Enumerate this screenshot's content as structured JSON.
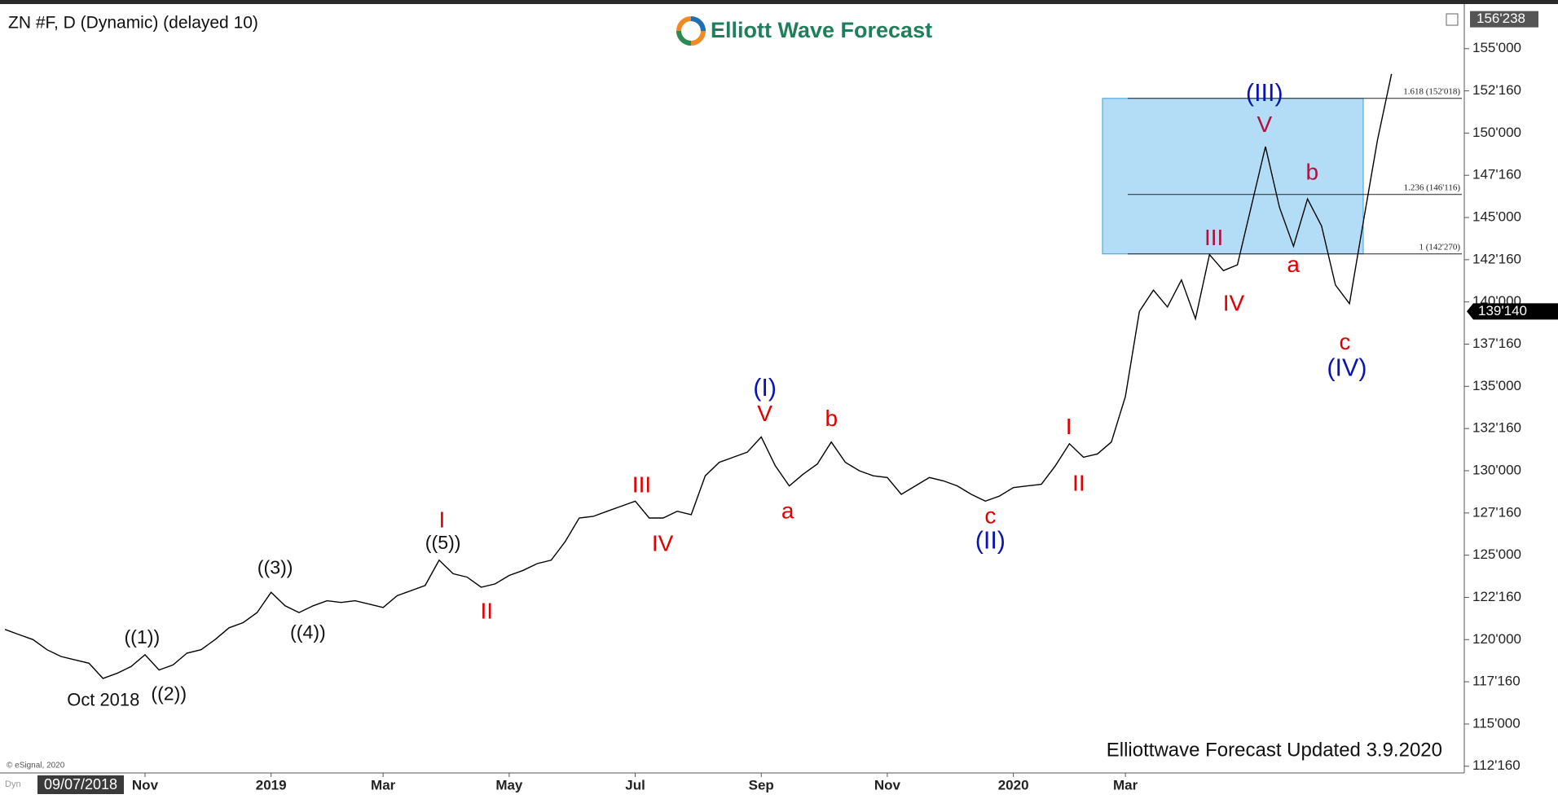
{
  "chart_data": {
    "type": "line",
    "title": "ZN #F, D (Dynamic) (delayed 10)",
    "categories": [
      null,
      null,
      null,
      null,
      null,
      null,
      null,
      null,
      null,
      null,
      "Nov",
      null,
      null,
      null,
      null,
      null,
      null,
      null,
      null,
      "2019",
      null,
      null,
      null,
      null,
      null,
      null,
      null,
      "Mar",
      null,
      null,
      null,
      null,
      null,
      null,
      null,
      null,
      "May",
      null,
      null,
      null,
      null,
      null,
      null,
      null,
      null,
      "Jul",
      null,
      null,
      null,
      null,
      null,
      null,
      null,
      null,
      "Sep",
      null,
      null,
      null,
      null,
      null,
      null,
      null,
      null,
      "Nov",
      null,
      null,
      null,
      null,
      null,
      null,
      null,
      null,
      "2020",
      null,
      null,
      null,
      null,
      null,
      null,
      null,
      "Mar",
      null,
      null,
      null,
      null,
      null,
      null,
      null,
      null,
      null,
      null,
      null,
      null,
      null,
      null,
      null,
      null,
      null,
      null,
      null
    ],
    "series": [
      {
        "color": "#000000",
        "values": [
          120.6,
          120.3,
          120.0,
          119.4,
          119.0,
          118.8,
          118.6,
          117.7,
          118.0,
          118.4,
          119.1,
          118.2,
          118.5,
          119.2,
          119.4,
          120.0,
          120.7,
          121.0,
          121.6,
          122.8,
          122.0,
          121.6,
          122.0,
          122.3,
          122.2,
          122.3,
          122.1,
          121.9,
          122.6,
          122.9,
          123.2,
          124.7,
          123.9,
          123.7,
          123.1,
          123.3,
          123.8,
          124.1,
          124.5,
          124.7,
          125.8,
          127.2,
          127.3,
          127.6,
          127.9,
          128.2,
          127.2,
          127.2,
          127.6,
          127.4,
          129.7,
          130.5,
          130.8,
          131.1,
          132.0,
          130.3,
          129.1,
          129.8,
          130.4,
          131.7,
          130.5,
          130.0,
          129.7,
          129.6,
          128.6,
          129.1,
          129.6,
          129.4,
          129.1,
          128.6,
          128.2,
          128.5,
          129.0,
          129.1,
          129.2,
          130.3,
          131.6,
          130.8,
          131.0,
          131.7,
          134.4,
          139.4375,
          null,
          null,
          null,
          null,
          null,
          null,
          null,
          null,
          null,
          null,
          null,
          null,
          null,
          null,
          null,
          null,
          null,
          null
        ]
      },
      {
        "color": "#000000",
        "values": [
          null,
          null,
          null,
          null,
          null,
          null,
          null,
          null,
          null,
          null,
          null,
          null,
          null,
          null,
          null,
          null,
          null,
          null,
          null,
          null,
          null,
          null,
          null,
          null,
          null,
          null,
          null,
          null,
          null,
          null,
          null,
          null,
          null,
          null,
          null,
          null,
          null,
          null,
          null,
          null,
          null,
          null,
          null,
          null,
          null,
          null,
          null,
          null,
          null,
          null,
          null,
          null,
          null,
          null,
          null,
          null,
          null,
          null,
          null,
          null,
          null,
          null,
          null,
          null,
          null,
          null,
          null,
          null,
          null,
          null,
          null,
          null,
          null,
          null,
          null,
          null,
          null,
          null,
          null,
          null,
          null,
          139.4375,
          140.7,
          139.7,
          141.3,
          139.0,
          142.8,
          141.85,
          142.2,
          145.7,
          149.2,
          145.6,
          143.3,
          146.1,
          144.5,
          141.0,
          139.9,
          144.8,
          149.6,
          153.5
        ]
      }
    ],
    "ylim": [
      112.15,
      157.4
    ],
    "yticks": [
      {
        "value": 112.5,
        "label": "112'160"
      },
      {
        "value": 115,
        "label": "115'000"
      },
      {
        "value": 117.5,
        "label": "117'160"
      },
      {
        "value": 120,
        "label": "120'000"
      },
      {
        "value": 122.5,
        "label": "122'160"
      },
      {
        "value": 125,
        "label": "125'000"
      },
      {
        "value": 127.5,
        "label": "127'160"
      },
      {
        "value": 130,
        "label": "130'000"
      },
      {
        "value": 132.5,
        "label": "132'160"
      },
      {
        "value": 135,
        "label": "135'000"
      },
      {
        "value": 137.5,
        "label": "137'160"
      },
      {
        "value": 140,
        "label": "140'000"
      },
      {
        "value": 142.5,
        "label": "142'160"
      },
      {
        "value": 145,
        "label": "145'000"
      },
      {
        "value": 147.5,
        "label": "147'160"
      },
      {
        "value": 150,
        "label": "150'000"
      },
      {
        "value": 152.5,
        "label": "152'160"
      },
      {
        "value": 155,
        "label": "155'000"
      }
    ],
    "top_label": {
      "value": 156.74375,
      "label": "156'238"
    },
    "last_price": {
      "value": 139.4375,
      "label": "139'140"
    },
    "fib_levels": [
      {
        "value": 152.05625,
        "label": "1.618 (152'018)"
      },
      {
        "value": 146.3625,
        "label": "1.236 (146'116)"
      },
      {
        "value": 142.84375,
        "label": "1 (142'270)"
      }
    ],
    "zone_color": "#b3ddf7",
    "annotations": [
      {
        "text": "((1))",
        "color": "#111111"
      },
      {
        "text": "((2))",
        "color": "#111111"
      },
      {
        "text": "((3))",
        "color": "#111111"
      },
      {
        "text": "((4))",
        "color": "#111111"
      },
      {
        "text": "((5))",
        "color": "#111111"
      },
      {
        "text": "I",
        "color": "#e00000"
      },
      {
        "text": "II",
        "color": "#e00000"
      },
      {
        "text": "III",
        "color": "#e00000"
      },
      {
        "text": "IV",
        "color": "#e00000"
      },
      {
        "text": "(I)",
        "color": "#0a14b4"
      },
      {
        "text": "V",
        "color": "#e00000"
      },
      {
        "text": "a",
        "color": "#e00000"
      },
      {
        "text": "b",
        "color": "#e00000"
      },
      {
        "text": "c",
        "color": "#e00000"
      },
      {
        "text": "(II)",
        "color": "#0a14b4"
      },
      {
        "text": "I",
        "color": "#e00000"
      },
      {
        "text": "II",
        "color": "#e00000"
      },
      {
        "text": "III",
        "color": "#b0103c"
      },
      {
        "text": "IV",
        "color": "#e00000"
      },
      {
        "text": "(III)",
        "color": "#0a14b4"
      },
      {
        "text": "V",
        "color": "#b0103c"
      },
      {
        "text": "a",
        "color": "#e00000"
      },
      {
        "text": "b",
        "color": "#b0103c"
      },
      {
        "text": "c",
        "color": "#e00000"
      },
      {
        "text": "(IV)",
        "color": "#0a14b4"
      },
      {
        "text": "Oct 2018",
        "color": "#111111"
      }
    ],
    "logo": "Elliott Wave Forecast",
    "footer": "Elliottwave Forecast Updated 3.9.2020",
    "copyright": "© eSignal, 2020",
    "cursor_date": "09/07/2018",
    "cursor_tag": "Dyn"
  }
}
